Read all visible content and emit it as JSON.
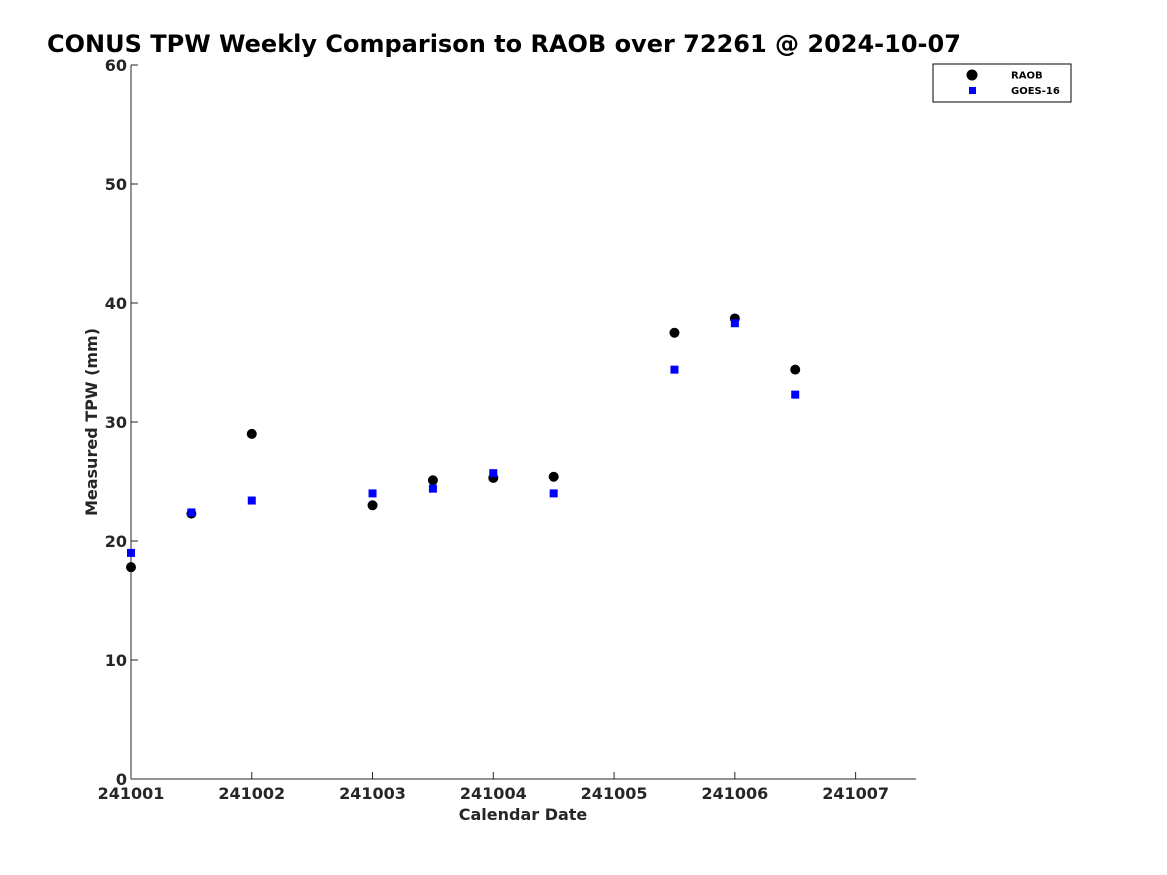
{
  "chart_data": {
    "type": "scatter",
    "title": "CONUS TPW Weekly Comparison to RAOB over 72261 @ 2024-10-07",
    "xlabel": "Calendar Date",
    "ylabel": "Measured TPW (mm)",
    "xlim": [
      241001,
      241007.5
    ],
    "ylim": [
      0,
      60
    ],
    "x_ticks": [
      241001,
      241002,
      241003,
      241004,
      241005,
      241006,
      241007
    ],
    "x_tick_labels": [
      "241001",
      "241002",
      "241003",
      "241004",
      "241005",
      "241006",
      "241007"
    ],
    "y_ticks": [
      0,
      10,
      20,
      30,
      40,
      50,
      60
    ],
    "y_tick_labels": [
      "0",
      "10",
      "20",
      "30",
      "40",
      "50",
      "60"
    ],
    "grid": false,
    "legend_position": "top-right",
    "series": [
      {
        "name": "RAOB",
        "marker": "circle",
        "color": "#000000",
        "x": [
          241001,
          241001.5,
          241002,
          241003,
          241003.5,
          241004,
          241004.5,
          241005.5,
          241006,
          241006.5
        ],
        "y": [
          17.8,
          22.3,
          29.0,
          23.0,
          25.1,
          25.3,
          25.4,
          37.5,
          38.7,
          34.4
        ]
      },
      {
        "name": "GOES-16",
        "marker": "square",
        "color": "#0000ff",
        "x": [
          241001,
          241001.5,
          241002,
          241003,
          241003.5,
          241004,
          241004.5,
          241005.5,
          241006,
          241006.5
        ],
        "y": [
          19.0,
          22.4,
          23.4,
          24.0,
          24.4,
          25.7,
          24.0,
          34.4,
          38.3,
          32.3
        ]
      }
    ]
  }
}
